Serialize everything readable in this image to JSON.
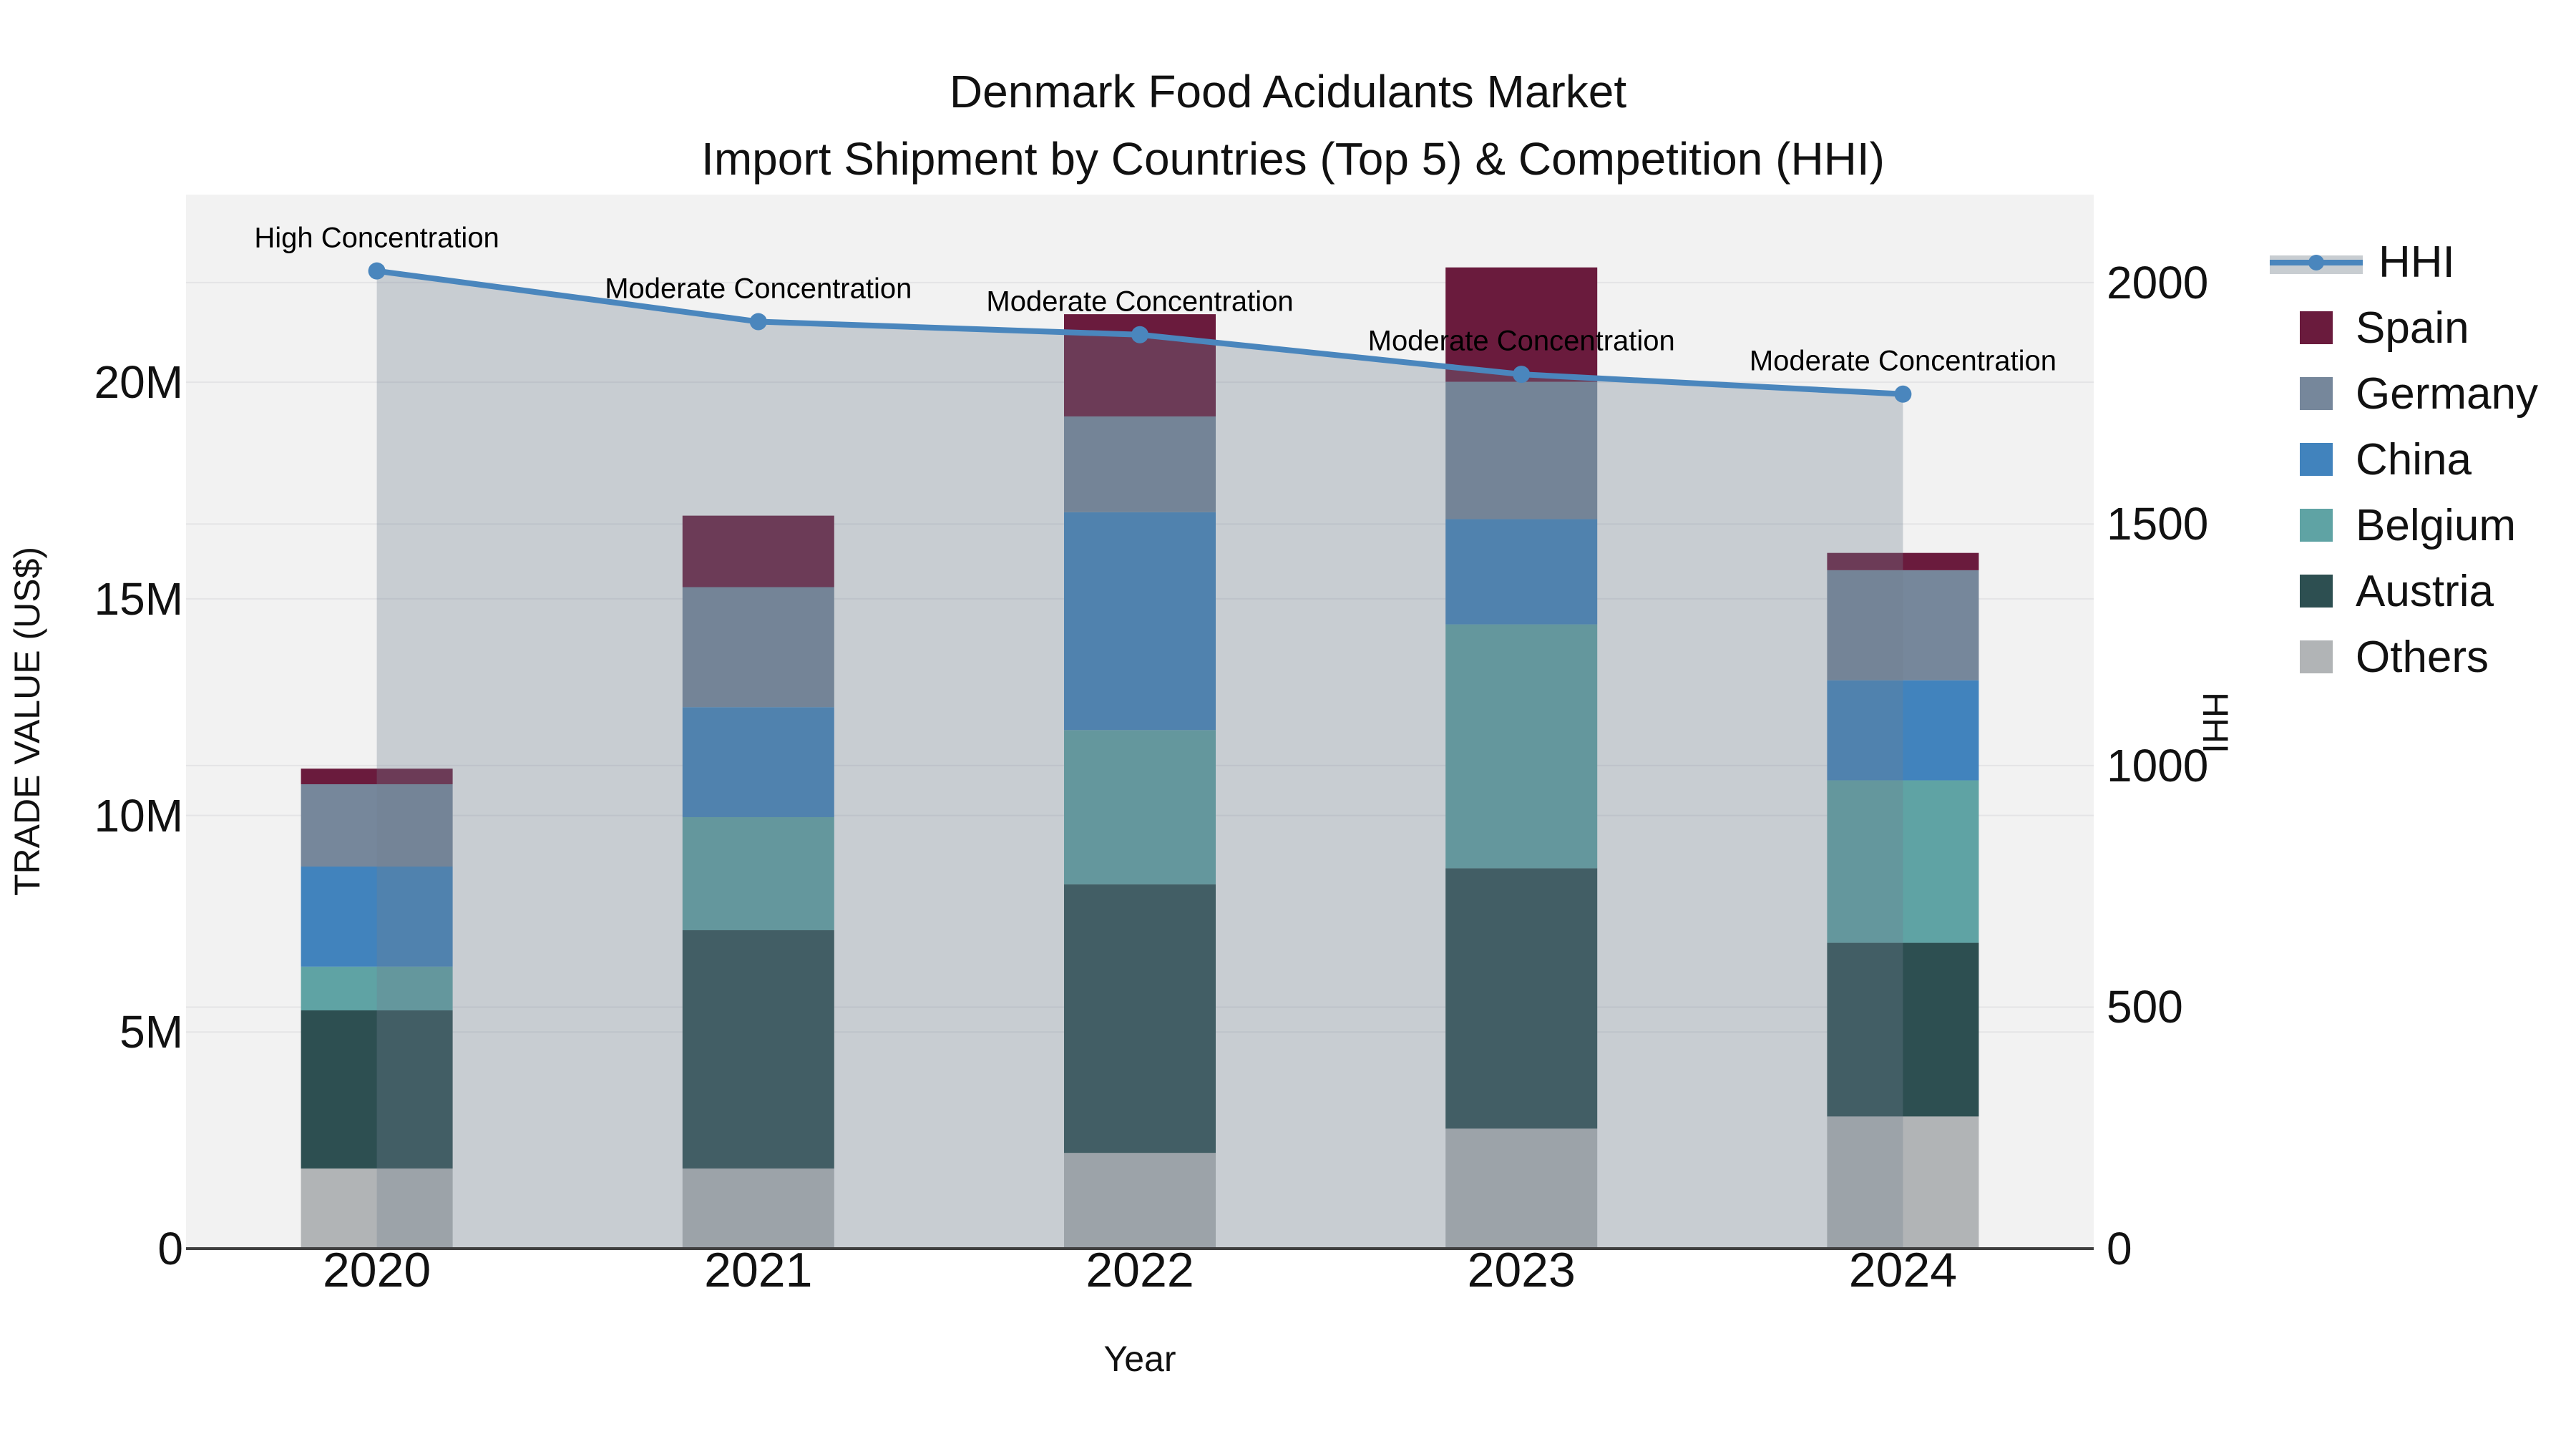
{
  "title": {
    "line1": "Denmark Food Acidulants Market",
    "line2": "Import Shipment by Countries (Top 5) & Competition (HHI)"
  },
  "axes": {
    "left": {
      "title": "TRADE VALUE (US$)",
      "ticks": [
        {
          "label": "0",
          "value": 0
        },
        {
          "label": "5M",
          "value": 5
        },
        {
          "label": "10M",
          "value": 10
        },
        {
          "label": "15M",
          "value": 15
        },
        {
          "label": "20M",
          "value": 20
        }
      ]
    },
    "right": {
      "title": "HHI",
      "ticks": [
        {
          "label": "0",
          "value": 0
        },
        {
          "label": "500",
          "value": 500
        },
        {
          "label": "1000",
          "value": 1000
        },
        {
          "label": "1500",
          "value": 1500
        },
        {
          "label": "2000",
          "value": 2000
        }
      ]
    },
    "x": {
      "title": "Year"
    }
  },
  "legend": {
    "items": [
      {
        "label": "HHI",
        "type": "line",
        "color": "#4a86bd"
      },
      {
        "label": "Spain",
        "type": "swatch",
        "color": "#6a1b3d"
      },
      {
        "label": "Germany",
        "type": "swatch",
        "color": "#76879b"
      },
      {
        "label": "China",
        "type": "swatch",
        "color": "#4183bd"
      },
      {
        "label": "Belgium",
        "type": "swatch",
        "color": "#5fa3a4"
      },
      {
        "label": "Austria",
        "type": "swatch",
        "color": "#2d4f51"
      },
      {
        "label": "Others",
        "type": "swatch",
        "color": "#b1b4b6"
      }
    ]
  },
  "chart_data": {
    "type": "combo-stacked-bar-line",
    "title": "Denmark Food Acidulants Market — Import Shipment by Countries (Top 5) & Competition (HHI)",
    "categories": [
      "2020",
      "2021",
      "2022",
      "2023",
      "2024"
    ],
    "unit_left": "US$ millions",
    "xlabel": "Year",
    "ylabel_left": "TRADE VALUE (US$)",
    "ylabel_right": "HHI",
    "ylim_left": [
      0,
      24.33
    ],
    "ylim_right": [
      0,
      2182
    ],
    "grid": true,
    "legend_position": "right",
    "plot_bg": "#f2f2f2",
    "grid_color": "#e4e4e6",
    "axis_line_color": "#3f3f3f",
    "stack_order_bottom_to_top": [
      "Others",
      "Austria",
      "Belgium",
      "China",
      "Germany",
      "Spain"
    ],
    "series": [
      {
        "name": "Others",
        "color": "#b1b4b6",
        "values": [
          1.85,
          1.85,
          2.21,
          2.77,
          3.05
        ]
      },
      {
        "name": "Austria",
        "color": "#2d4f51",
        "values": [
          3.65,
          5.5,
          6.2,
          6.01,
          4.01
        ]
      },
      {
        "name": "Belgium",
        "color": "#5fa3a4",
        "values": [
          1.01,
          2.61,
          3.56,
          5.63,
          3.75
        ]
      },
      {
        "name": "China",
        "color": "#4183bd",
        "values": [
          2.31,
          2.54,
          5.03,
          2.43,
          2.31
        ]
      },
      {
        "name": "Germany",
        "color": "#76879b",
        "values": [
          1.9,
          2.77,
          2.21,
          3.17,
          2.54
        ]
      },
      {
        "name": "Spain",
        "color": "#6a1b3d",
        "values": [
          0.36,
          1.65,
          2.36,
          2.64,
          0.4
        ]
      }
    ],
    "bar_totals": [
      11.08,
      16.92,
      21.57,
      22.65,
      16.06
    ],
    "line_series": {
      "name": "HHI",
      "axis": "right",
      "color": "#4a86bd",
      "fill": "rgba(112,128,144,0.32)",
      "values": [
        2024,
        1919,
        1892,
        1810,
        1769
      ]
    },
    "annotations": [
      {
        "category": "2020",
        "text": "High Concentration"
      },
      {
        "category": "2021",
        "text": "Moderate Concentration"
      },
      {
        "category": "2022",
        "text": "Moderate Concentration"
      },
      {
        "category": "2023",
        "text": "Moderate Concentration"
      },
      {
        "category": "2024",
        "text": "Moderate Concentration"
      }
    ]
  }
}
